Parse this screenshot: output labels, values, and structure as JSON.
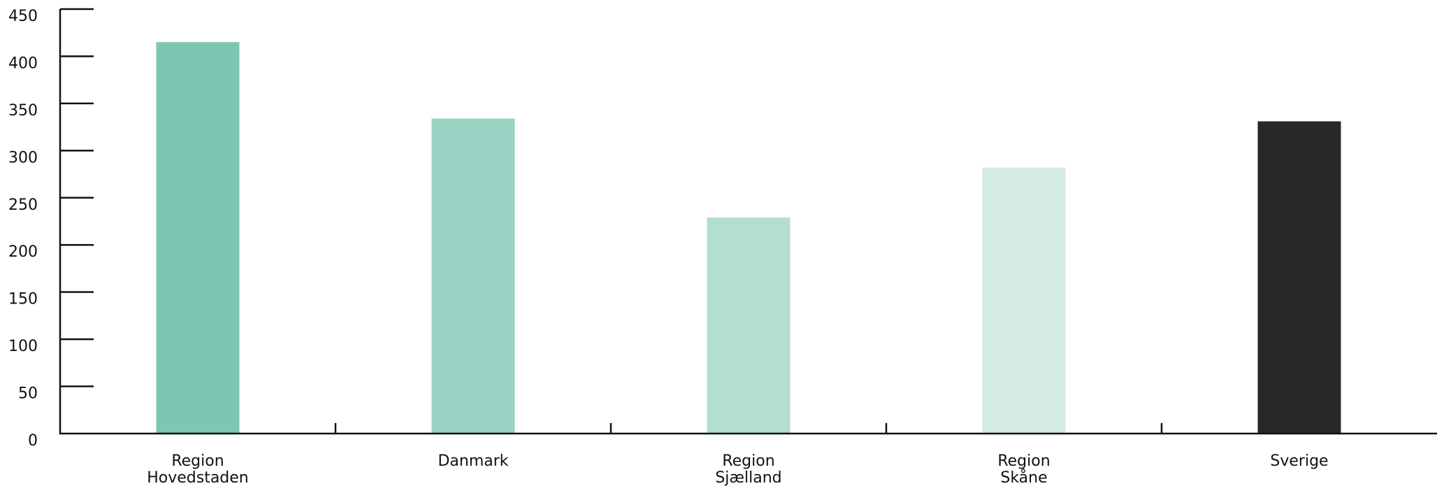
{
  "chart_data": {
    "type": "bar",
    "title": "",
    "xlabel": "",
    "ylabel": "",
    "ylim": [
      0,
      450
    ],
    "yticks": [
      0,
      50,
      100,
      150,
      200,
      250,
      300,
      350,
      400,
      450
    ],
    "categories": [
      [
        "Region",
        "Hovedstaden"
      ],
      [
        "Danmark"
      ],
      [
        "Region",
        "Sjælland"
      ],
      [
        "Region",
        "Skåne"
      ],
      [
        "Sverige"
      ]
    ],
    "values": [
      415,
      334,
      229,
      282,
      331
    ],
    "colors": [
      "#7fc6b2",
      "#99d3c3",
      "#b2dfd2",
      "#d4ebe3",
      "#282828"
    ],
    "grid": false,
    "legend": "none"
  }
}
